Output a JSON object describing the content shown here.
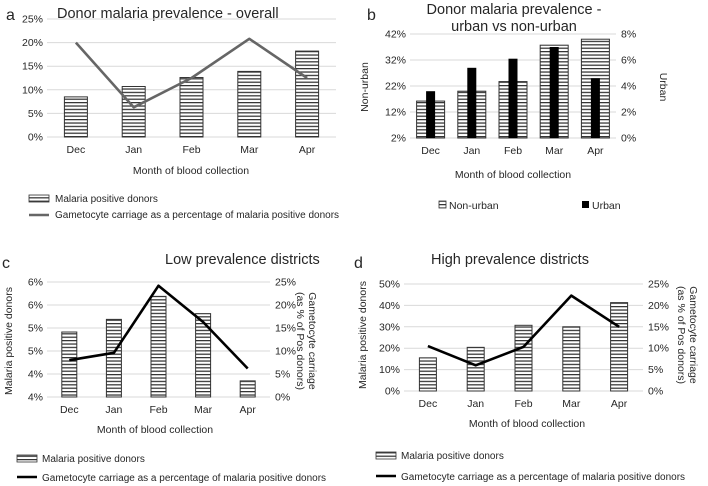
{
  "chart_data": [
    {
      "panel_label": "a",
      "type": "bar",
      "title": "Donor malaria prevalence - overall",
      "categories": [
        "Dec",
        "Jan",
        "Feb",
        "Mar",
        "Apr"
      ],
      "xlabel": "Month of blood collection",
      "ylabel": "",
      "ylim": [
        0,
        25
      ],
      "yticks": [
        "0%",
        "5%",
        "10%",
        "15%",
        "20%",
        "25%"
      ],
      "series": [
        {
          "name": "Malaria positive donors",
          "kind": "bar",
          "axis": "left",
          "values": [
            8.5,
            10.7,
            12.6,
            13.9,
            18.2
          ]
        },
        {
          "name": "Gametocyte carriage as a percentage of malaria positive donors",
          "kind": "line",
          "axis": "left",
          "values": [
            20,
            6.3,
            12.5,
            20.8,
            12.5
          ]
        }
      ]
    },
    {
      "panel_label": "b",
      "type": "bar",
      "title": "Donor malaria prevalence -",
      "title_line2": "urban vs non-urban",
      "categories": [
        "Dec",
        "Jan",
        "Feb",
        "Mar",
        "Apr"
      ],
      "xlabel": "Month of blood collection",
      "ylabel": "Non-urban",
      "y2label": "Urban",
      "ylim": [
        2,
        42
      ],
      "yticks": [
        "2%",
        "12%",
        "22%",
        "32%",
        "42%"
      ],
      "y2lim": [
        0,
        8
      ],
      "y2ticks": [
        "0%",
        "2%",
        "4%",
        "6%",
        "8%"
      ],
      "series": [
        {
          "name": "Non-urban",
          "kind": "bar",
          "axis": "left",
          "values": [
            16.2,
            20.0,
            23.7,
            37.7,
            40.0
          ]
        },
        {
          "name": "Urban",
          "kind": "bar",
          "axis": "right",
          "values": [
            3.6,
            5.4,
            6.1,
            7.0,
            4.6
          ]
        }
      ]
    },
    {
      "panel_label": "c",
      "type": "bar",
      "title": "Low prevalence districts",
      "categories": [
        "Dec",
        "Jan",
        "Feb",
        "Mar",
        "Apr"
      ],
      "xlabel": "Month of blood collection",
      "ylabel": "Malaria positive donors",
      "y2label": "Gametocyte carriage",
      "y2label_line2": "(as % of Pos donors)",
      "ylim": [
        4,
        6
      ],
      "yticks": [
        "4%",
        "4%",
        "5%",
        "5%",
        "6%",
        "6%"
      ],
      "y2lim": [
        0,
        25
      ],
      "y2ticks": [
        "0%",
        "5%",
        "10%",
        "15%",
        "20%",
        "25%"
      ],
      "series": [
        {
          "name": "Malaria positive donors",
          "kind": "bar",
          "axis": "left",
          "values": [
            5.13,
            5.35,
            5.75,
            5.45,
            4.28
          ]
        },
        {
          "name": "Gametocyte carriage as a percentage of malaria positive donors",
          "kind": "line",
          "axis": "right",
          "values": [
            8,
            9.6,
            24.2,
            16.3,
            6.2
          ]
        }
      ]
    },
    {
      "panel_label": "d",
      "type": "bar",
      "title": "High prevalence districts",
      "categories": [
        "Dec",
        "Jan",
        "Feb",
        "Mar",
        "Apr"
      ],
      "xlabel": "Month of blood collection",
      "ylabel": "Malaria positive donors",
      "y2label": "Gametocyte carriage",
      "y2label_line2": "(as % of Pos donors)",
      "ylim": [
        0,
        50
      ],
      "yticks": [
        "0%",
        "10%",
        "20%",
        "30%",
        "40%",
        "50%"
      ],
      "y2lim": [
        0,
        25
      ],
      "y2ticks": [
        "0%",
        "5%",
        "10%",
        "15%",
        "20%",
        "25%"
      ],
      "series": [
        {
          "name": "Malaria positive donors",
          "kind": "bar",
          "axis": "left",
          "values": [
            15.5,
            20.4,
            30.7,
            30.0,
            41.3
          ]
        },
        {
          "name": "Gametocyte carriage as a percentage of malaria positive donors",
          "kind": "line",
          "axis": "right",
          "values": [
            10.5,
            6,
            10.3,
            22.3,
            15
          ]
        }
      ]
    }
  ]
}
